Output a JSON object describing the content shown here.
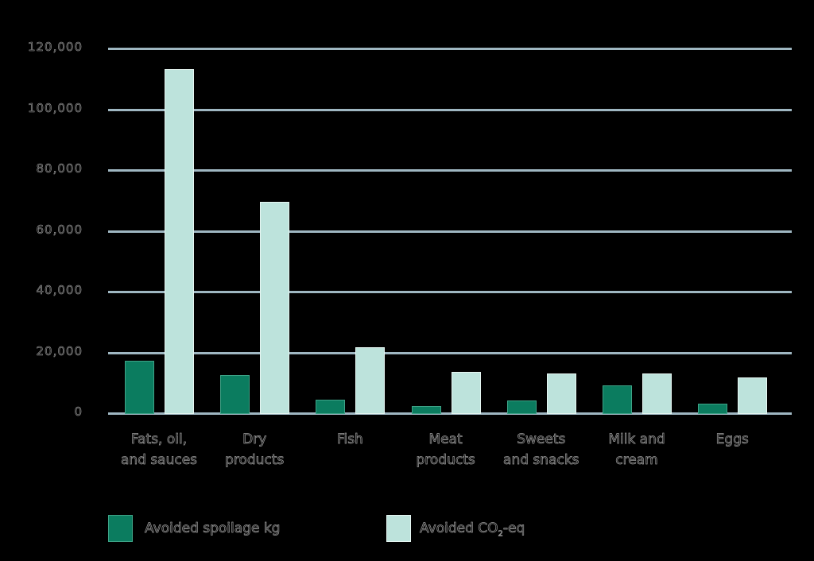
{
  "chart_data": {
    "type": "bar",
    "title": "",
    "xlabel": "",
    "ylabel": "",
    "ylim": [
      0,
      120000
    ],
    "yticks": [
      0,
      20000,
      40000,
      60000,
      80000,
      100000,
      120000
    ],
    "ytick_labels": [
      "0",
      "20,000",
      "40,000",
      "60,000",
      "80,000",
      "100,000",
      "120,000"
    ],
    "grid": true,
    "legend_position": "bottom",
    "categories": [
      "Fats, oil, and sauces",
      "Dry products",
      "Fish",
      "Meat products",
      "Sweets and snacks",
      "Milk and cream",
      "Eggs"
    ],
    "category_lines": [
      [
        "Fats, oil,",
        "and sauces"
      ],
      [
        "Dry",
        "products"
      ],
      [
        "Fish",
        ""
      ],
      [
        "Meat",
        "products"
      ],
      [
        "Sweets",
        "and snacks"
      ],
      [
        "Milk and",
        "cream"
      ],
      [
        "Eggs",
        ""
      ]
    ],
    "series": [
      {
        "name": "Avoided spoilage kg",
        "color": "#0b7c5f",
        "values": [
          17300,
          12500,
          4400,
          2400,
          4200,
          9100,
          3100
        ]
      },
      {
        "name": "Avoided CO2-eq",
        "color": "#bde3dc",
        "values": [
          113200,
          69500,
          21700,
          13600,
          13100,
          13100,
          11800
        ]
      }
    ]
  },
  "legend": {
    "items": [
      {
        "label": "Avoided spoilage kg"
      },
      {
        "label_main": "Avoided CO",
        "label_sub": "2",
        "label_tail": "-eq"
      }
    ]
  }
}
